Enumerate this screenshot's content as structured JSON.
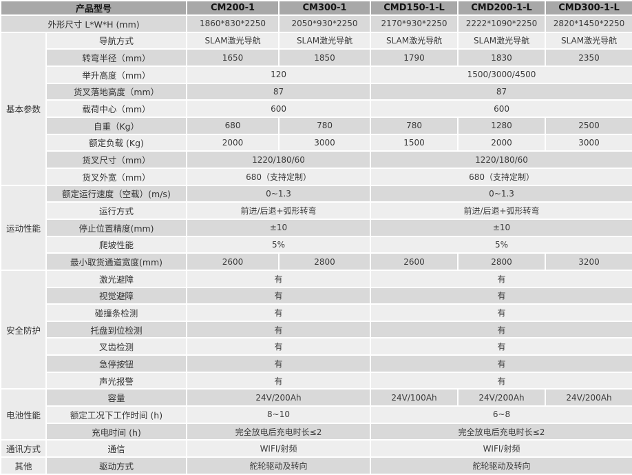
{
  "colors": {
    "header_bg": "#a8a8a8",
    "row_dark": "#d9d9d9",
    "row_light": "#eeeeee",
    "section_bg": "#ebebeb",
    "divider": "#ffffff",
    "header_text": "#141414",
    "body_text": "#3a3a3a"
  },
  "table": {
    "header": {
      "model_label": "产品型号",
      "models": [
        "CM200-1",
        "CM300-1",
        "CMD150-1-L",
        "CMD200-1-L",
        "CMD300-1-L"
      ]
    },
    "rows": [
      {
        "label": "外形尺寸 L*W*H (mm)",
        "label_colspan": 2,
        "shade": "dark",
        "cells": [
          {
            "text": "1860*830*2250",
            "span": 1
          },
          {
            "text": "2050*930*2250",
            "span": 1
          },
          {
            "text": "2170*930*2250",
            "span": 1
          },
          {
            "text": "2222*1090*2250",
            "span": 1
          },
          {
            "text": "2820*1450*2250",
            "span": 1
          }
        ]
      },
      {
        "section": {
          "label": "基本参数",
          "rowspan": 9
        },
        "label": "导航方式",
        "shade": "light",
        "cells": [
          {
            "text": "SLAM激光导航",
            "span": 1
          },
          {
            "text": "SLAM激光导航",
            "span": 1
          },
          {
            "text": "SLAM激光导航",
            "span": 1
          },
          {
            "text": "SLAM激光导航",
            "span": 1
          },
          {
            "text": "SLAM激光导航",
            "span": 1
          }
        ]
      },
      {
        "label": "转弯半径（mm）",
        "shade": "dark",
        "cells": [
          {
            "text": "1650",
            "span": 1
          },
          {
            "text": "1850",
            "span": 1
          },
          {
            "text": "1790",
            "span": 1
          },
          {
            "text": "1830",
            "span": 1
          },
          {
            "text": "2350",
            "span": 1
          }
        ]
      },
      {
        "label": "举升高度（mm）",
        "shade": "light",
        "cells": [
          {
            "text": "120",
            "span": 2
          },
          {
            "text": "1500/3000/4500",
            "span": 3
          }
        ]
      },
      {
        "label": "货叉落地高度（mm）",
        "shade": "dark",
        "cells": [
          {
            "text": "87",
            "span": 2
          },
          {
            "text": "87",
            "span": 3
          }
        ]
      },
      {
        "label": "载荷中心（mm）",
        "shade": "light",
        "cells": [
          {
            "text": "600",
            "span": 2
          },
          {
            "text": "600",
            "span": 3
          }
        ]
      },
      {
        "label": "自重（Kg）",
        "shade": "dark",
        "cells": [
          {
            "text": "680",
            "span": 1
          },
          {
            "text": "780",
            "span": 1
          },
          {
            "text": "780",
            "span": 1
          },
          {
            "text": "1280",
            "span": 1
          },
          {
            "text": "2500",
            "span": 1
          }
        ]
      },
      {
        "label": "额定负载 (Kg)",
        "shade": "light",
        "cells": [
          {
            "text": "2000",
            "span": 1
          },
          {
            "text": "3000",
            "span": 1
          },
          {
            "text": "1500",
            "span": 1
          },
          {
            "text": "2000",
            "span": 1
          },
          {
            "text": "3000",
            "span": 1
          }
        ]
      },
      {
        "label": "货叉尺寸（mm）",
        "shade": "dark",
        "cells": [
          {
            "text": "1220/180/60",
            "span": 2
          },
          {
            "text": "1220/180/60",
            "span": 3
          }
        ]
      },
      {
        "label": "货叉外宽（mm）",
        "shade": "light",
        "cells": [
          {
            "text": "680（支持定制）",
            "span": 2
          },
          {
            "text": "680（支持定制）",
            "span": 3
          }
        ]
      },
      {
        "section": {
          "label": "运动性能",
          "rowspan": 5
        },
        "label": "额定运行速度（空载）(m/s)",
        "shade": "dark",
        "cells": [
          {
            "text": "0~1.3",
            "span": 2
          },
          {
            "text": "0~1.3",
            "span": 3
          }
        ]
      },
      {
        "label": "运行方式",
        "shade": "light",
        "cells": [
          {
            "text": "前进/后退+弧形转弯",
            "span": 2
          },
          {
            "text": "前进/后退+弧形转弯",
            "span": 3
          }
        ]
      },
      {
        "label": "停止位置精度(mm)",
        "shade": "dark",
        "cells": [
          {
            "text": "±10",
            "span": 2
          },
          {
            "text": "±10",
            "span": 3
          }
        ]
      },
      {
        "label": "爬坡性能",
        "shade": "light",
        "cells": [
          {
            "text": "5%",
            "span": 2
          },
          {
            "text": "5%",
            "span": 3
          }
        ]
      },
      {
        "label": "最小取货通道宽度(mm)",
        "shade": "dark",
        "cells": [
          {
            "text": "2600",
            "span": 1
          },
          {
            "text": "2800",
            "span": 1
          },
          {
            "text": "2600",
            "span": 1
          },
          {
            "text": "2800",
            "span": 1
          },
          {
            "text": "3200",
            "span": 1
          }
        ]
      },
      {
        "section": {
          "label": "安全防护",
          "rowspan": 7
        },
        "label": "激光避障",
        "shade": "light",
        "cells": [
          {
            "text": "有",
            "span": 2
          },
          {
            "text": "有",
            "span": 3
          }
        ]
      },
      {
        "label": "视觉避障",
        "shade": "dark",
        "cells": [
          {
            "text": "有",
            "span": 2
          },
          {
            "text": "有",
            "span": 3
          }
        ]
      },
      {
        "label": "碰撞条检测",
        "shade": "light",
        "cells": [
          {
            "text": "有",
            "span": 2
          },
          {
            "text": "有",
            "span": 3
          }
        ]
      },
      {
        "label": "托盘到位检测",
        "shade": "dark",
        "cells": [
          {
            "text": "有",
            "span": 2
          },
          {
            "text": "有",
            "span": 3
          }
        ]
      },
      {
        "label": "叉齿检测",
        "shade": "light",
        "cells": [
          {
            "text": "有",
            "span": 2
          },
          {
            "text": "有",
            "span": 3
          }
        ]
      },
      {
        "label": "急停按钮",
        "shade": "dark",
        "cells": [
          {
            "text": "有",
            "span": 2
          },
          {
            "text": "有",
            "span": 3
          }
        ]
      },
      {
        "label": "声光报警",
        "shade": "light",
        "cells": [
          {
            "text": "有",
            "span": 2
          },
          {
            "text": "有",
            "span": 3
          }
        ]
      },
      {
        "section": {
          "label": "电池性能",
          "rowspan": 3
        },
        "label": "容量",
        "shade": "dark",
        "cells": [
          {
            "text": "24V/200Ah",
            "span": 2
          },
          {
            "text": "24V/100Ah",
            "span": 1
          },
          {
            "text": "24V/200Ah",
            "span": 1
          },
          {
            "text": "24V/200Ah",
            "span": 1
          }
        ]
      },
      {
        "label": "额定工况下工作时间 (h)",
        "shade": "light",
        "cells": [
          {
            "text": "8~10",
            "span": 2
          },
          {
            "text": "6~8",
            "span": 3
          }
        ]
      },
      {
        "label": "充电时间 (h)",
        "shade": "dark",
        "cells": [
          {
            "text": "完全放电后充电时长≤2",
            "span": 2
          },
          {
            "text": "完全放电后充电时长≤2",
            "span": 3
          }
        ]
      },
      {
        "section": {
          "label": "通讯方式",
          "rowspan": 1
        },
        "label": "通信",
        "shade": "light",
        "cells": [
          {
            "text": "WIFI/射频",
            "span": 2
          },
          {
            "text": "WIFI/射频",
            "span": 3
          }
        ]
      },
      {
        "section": {
          "label": "其他",
          "rowspan": 1
        },
        "label": "驱动方式",
        "shade": "dark",
        "cells": [
          {
            "text": "舵轮驱动及转向",
            "span": 2
          },
          {
            "text": "舵轮驱动及转向",
            "span": 3
          }
        ]
      }
    ]
  }
}
